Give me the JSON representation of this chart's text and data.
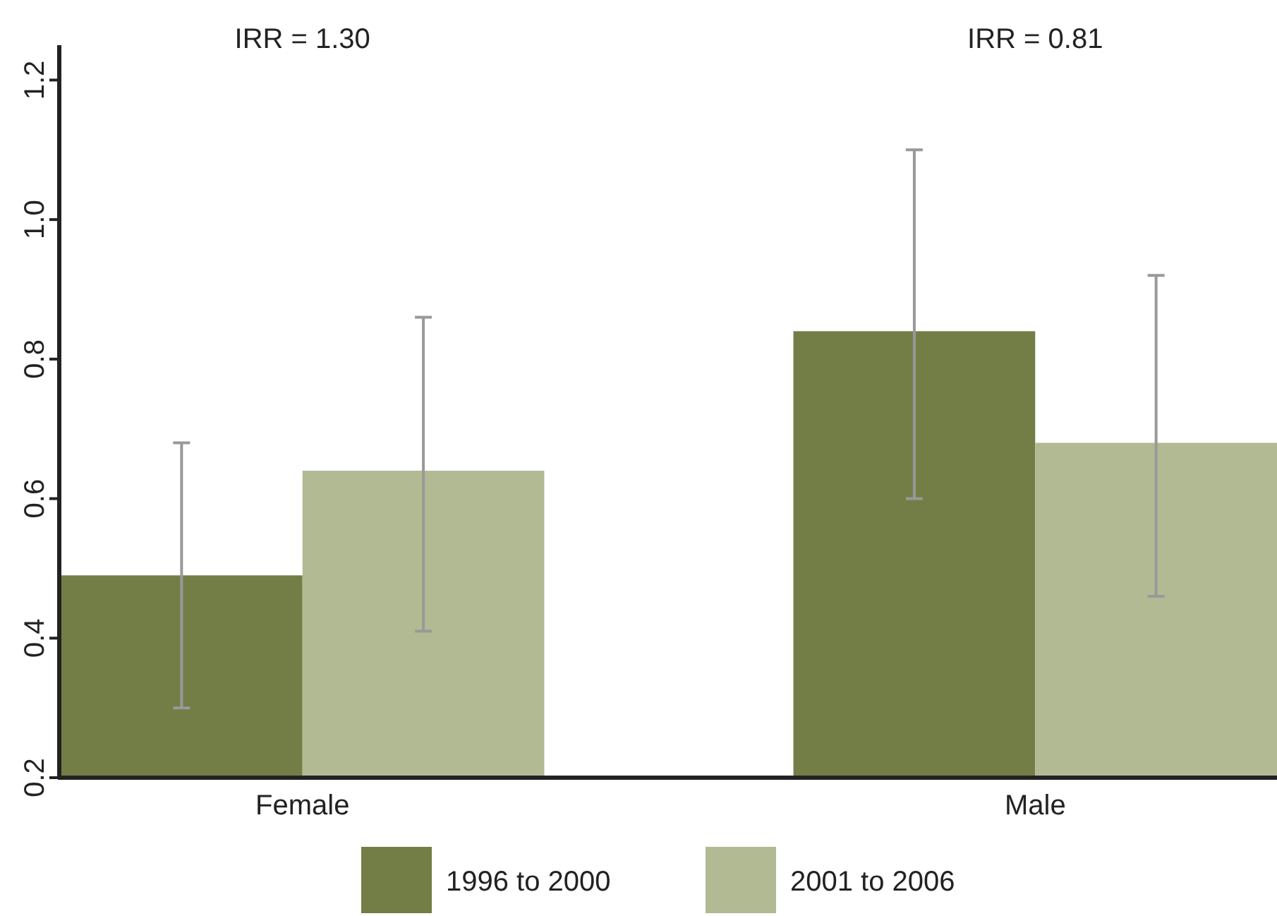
{
  "chart_data": {
    "type": "bar",
    "categories": [
      "Female",
      "Male"
    ],
    "series": [
      {
        "name": "1996 to 2000",
        "color": "#737d46",
        "values": [
          0.49,
          0.84
        ],
        "errors": [
          [
            0.3,
            0.68
          ],
          [
            0.6,
            1.1
          ]
        ]
      },
      {
        "name": "2001 to 2006",
        "color": "#b2ba94",
        "values": [
          0.64,
          0.68
        ],
        "errors": [
          [
            0.41,
            0.86
          ],
          [
            0.46,
            0.92
          ]
        ]
      }
    ],
    "ylim": [
      0.2,
      1.25
    ],
    "yticks": [
      {
        "value": 0.2,
        "label": "0.2"
      },
      {
        "value": 0.4,
        "label": "0.4"
      },
      {
        "value": 0.6,
        "label": "0.6"
      },
      {
        "value": 0.8,
        "label": "0.8"
      },
      {
        "value": 1.0,
        "label": "1.0"
      },
      {
        "value": 1.2,
        "label": "1.2"
      }
    ],
    "annotations": [
      "IRR = 1.30",
      "IRR = 0.81"
    ],
    "legend": "bottom",
    "grid": false
  }
}
